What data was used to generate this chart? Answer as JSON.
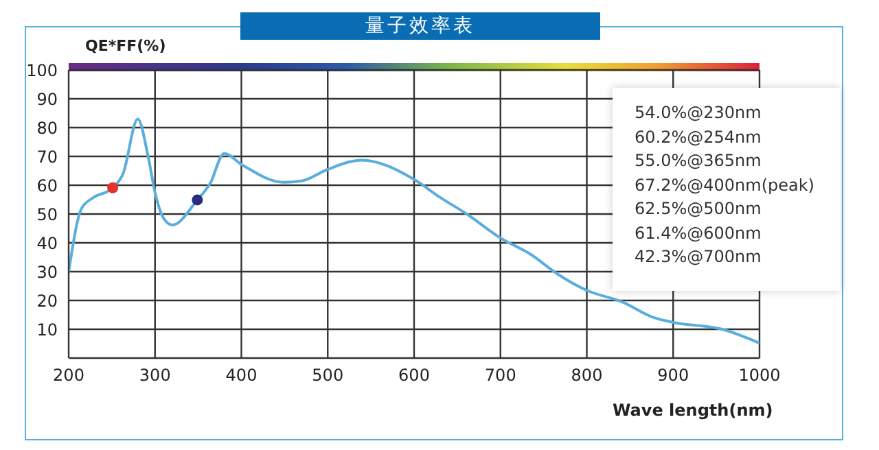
{
  "chart_data": {
    "type": "line",
    "title": "量子效率表",
    "ylabel": "QE*FF(%)",
    "xlabel": "Wave length(nm)",
    "annotations": [
      "54.0%@230nm",
      "60.2%@254nm",
      "55.0%@365nm",
      "67.2%@400nm(peak)",
      "62.5%@500nm",
      "61.4%@600nm",
      "42.3%@700nm"
    ],
    "series": [
      {
        "color": "#5aaedc",
        "x": [
          200,
          215,
          228,
          251,
          263,
          280,
          292,
          300,
          309,
          320,
          349,
          364,
          380,
          401,
          449,
          470,
          500,
          539,
          600,
          629,
          661,
          700,
          735,
          767,
          800,
          841,
          878,
          900,
          957,
          1000
        ],
        "values": [
          30,
          52,
          55.6,
          59.1,
          64,
          83,
          70,
          57.5,
          49,
          46.2,
          54.9,
          60.7,
          71,
          67,
          61,
          61.5,
          65.5,
          68.7,
          62,
          56,
          50,
          41.7,
          36,
          29,
          23.5,
          19.5,
          14,
          12.4,
          10,
          5.2
        ]
      },
      {
        "type": "scatter",
        "color": "#e8312f",
        "x": [
          251
        ],
        "values": [
          59.1
        ]
      },
      {
        "type": "scatter",
        "color": "#2a2c7c",
        "x": [
          349
        ],
        "values": [
          54.9
        ]
      }
    ],
    "xlim": [
      200,
      1000
    ],
    "xticks": [
      200,
      300,
      400,
      500,
      600,
      700,
      800,
      900,
      1000
    ],
    "ylim": [
      0,
      100
    ],
    "yticks": [
      10,
      20,
      30,
      40,
      50,
      60,
      70,
      80,
      90,
      100
    ],
    "grid": true
  }
}
